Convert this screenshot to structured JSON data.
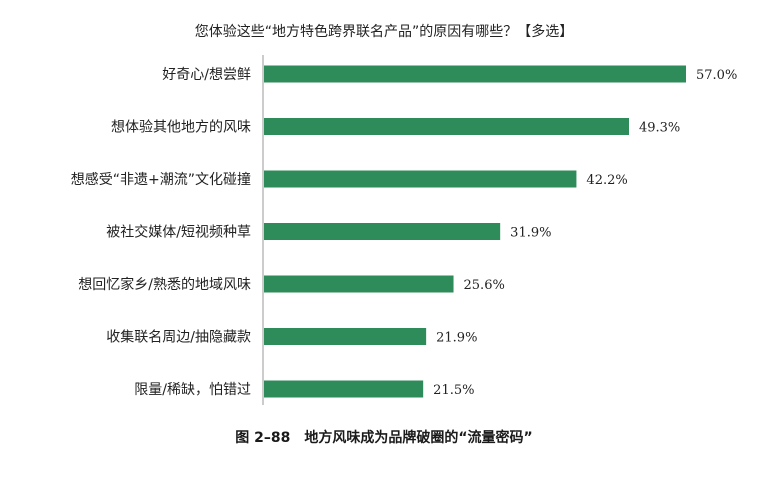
{
  "chart_data": {
    "type": "bar",
    "orientation": "horizontal",
    "title": "您体验这些“地方特色跨界联名产品”的原因有哪些？【多选】",
    "categories": [
      "好奇心/想尝鲜",
      "想体验其他地方的风味",
      "想感受“非遗+潮流”文化碰撞",
      "被社交媒体/短视频种草",
      "想回忆家乡/熟悉的地域风味",
      "收集联名周边/抽隐藏款",
      "限量/稀缺，怕错过"
    ],
    "values": [
      57.0,
      49.3,
      42.2,
      31.9,
      25.6,
      21.9,
      21.5
    ],
    "value_labels": [
      "57.0%",
      "49.3%",
      "42.2%",
      "31.9%",
      "25.6%",
      "21.9%",
      "21.5%"
    ],
    "unit": "%",
    "xlim": [
      0,
      57.0
    ],
    "bar_color": "#2e8b5a",
    "grid": false,
    "legend": "none"
  },
  "caption": "图 2–88　地方风味成为品牌破圈的“流量密码”"
}
